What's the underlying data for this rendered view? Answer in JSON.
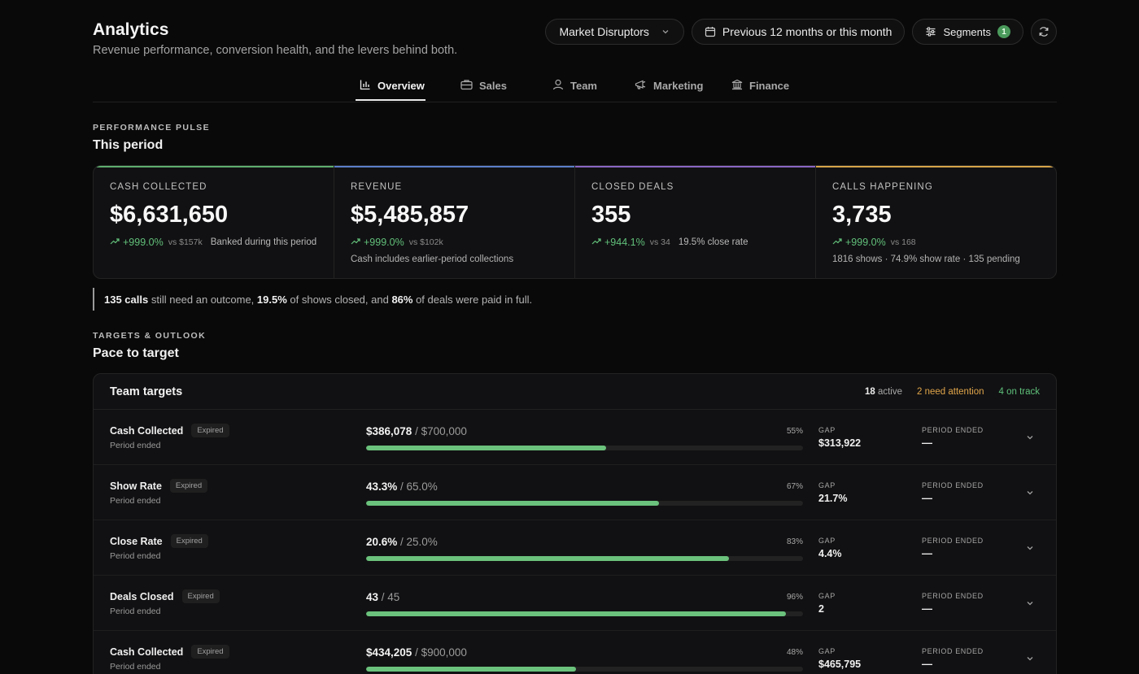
{
  "header": {
    "title": "Analytics",
    "subtitle": "Revenue performance, conversion health, and the levers behind both.",
    "segment_select": "Market Disruptors",
    "period_select": "Previous 12 months or this month",
    "segments_label": "Segments",
    "segments_count": "1"
  },
  "tabs": [
    {
      "label": "Overview",
      "icon": "bar-chart-icon",
      "active": true
    },
    {
      "label": "Sales",
      "icon": "briefcase-icon"
    },
    {
      "label": "Team",
      "icon": "user-icon"
    },
    {
      "label": "Marketing",
      "icon": "megaphone-icon"
    },
    {
      "label": "Finance",
      "icon": "bank-icon"
    }
  ],
  "pulse": {
    "eyebrow": "PERFORMANCE PULSE",
    "title": "This period",
    "cards": [
      {
        "label": "CASH COLLECTED",
        "value": "$6,631,650",
        "delta": "+999.0%",
        "vs": "vs $157k",
        "note": "Banked during this period",
        "sub": "",
        "accent": "#5fae6e"
      },
      {
        "label": "REVENUE",
        "value": "$5,485,857",
        "delta": "+999.0%",
        "vs": "vs $102k",
        "note": "",
        "sub": "Cash includes earlier-period collections",
        "accent": "#5b7fc9"
      },
      {
        "label": "CLOSED DEALS",
        "value": "355",
        "delta": "+944.1%",
        "vs": "vs 34",
        "note": "19.5% close rate",
        "sub": "",
        "accent": "#8a66c4"
      },
      {
        "label": "CALLS HAPPENING",
        "value": "3,735",
        "delta": "+999.0%",
        "vs": "vs 168",
        "note": "",
        "sub": "1816 shows · 74.9% show rate · 135 pending",
        "accent": "#d6a44a"
      }
    ]
  },
  "callout": {
    "calls": "135 calls",
    "t1": " still need an outcome, ",
    "closed_pct": "19.5%",
    "t2": " of shows closed, and ",
    "paid_pct": "86%",
    "t3": " of deals were paid in full."
  },
  "targets": {
    "eyebrow": "TARGETS & OUTLOOK",
    "title": "Pace to target",
    "panel_title": "Team targets",
    "active_count": "18",
    "active_label": " active",
    "attention": "2 need attention",
    "on_track": "4 on track",
    "gap_label": "GAP",
    "period_label": "PERIOD ENDED",
    "rows": [
      {
        "name": "Cash Collected",
        "badge": "Expired",
        "status": "Period ended",
        "current": "$386,078",
        "target": " / $700,000",
        "pct_label": "55%",
        "progress": 0.55,
        "gap": "$313,922",
        "period": "—"
      },
      {
        "name": "Show Rate",
        "badge": "Expired",
        "status": "Period ended",
        "current": "43.3%",
        "target": " / 65.0%",
        "pct_label": "67%",
        "progress": 0.67,
        "gap": "21.7%",
        "period": "—"
      },
      {
        "name": "Close Rate",
        "badge": "Expired",
        "status": "Period ended",
        "current": "20.6%",
        "target": " / 25.0%",
        "pct_label": "83%",
        "progress": 0.83,
        "gap": "4.4%",
        "period": "—"
      },
      {
        "name": "Deals Closed",
        "badge": "Expired",
        "status": "Period ended",
        "current": "43",
        "target": " / 45",
        "pct_label": "96%",
        "progress": 0.96,
        "gap": "2",
        "period": "—"
      },
      {
        "name": "Cash Collected",
        "badge": "Expired",
        "status": "Period ended",
        "current": "$434,205",
        "target": " / $900,000",
        "pct_label": "48%",
        "progress": 0.48,
        "gap": "$465,795",
        "period": "—"
      }
    ]
  }
}
